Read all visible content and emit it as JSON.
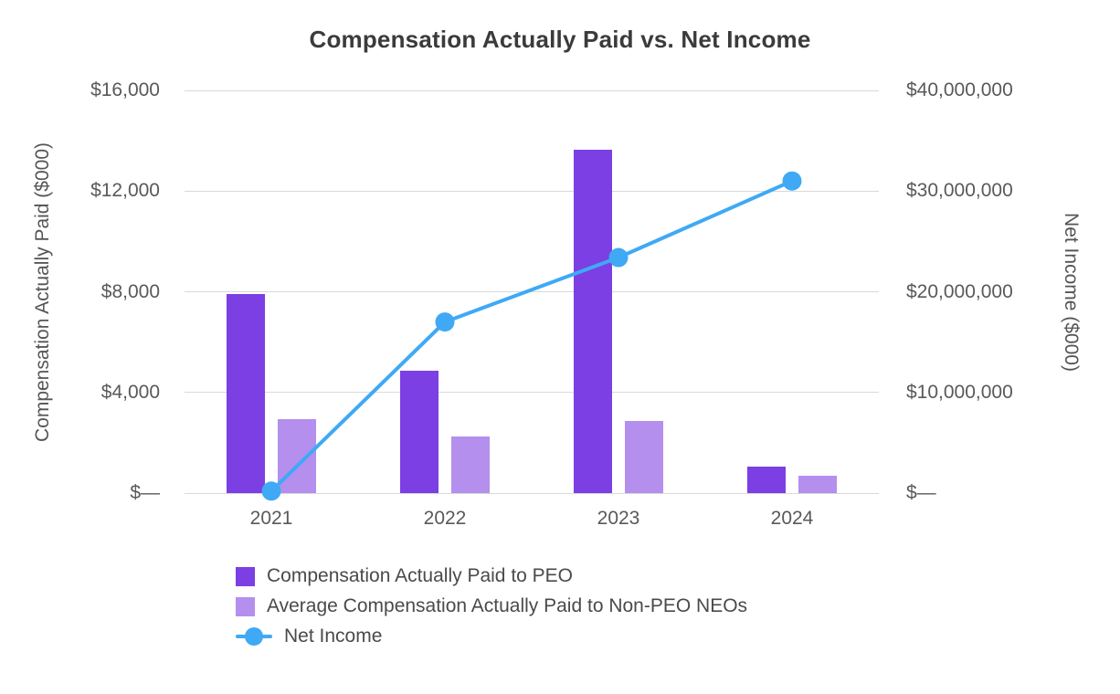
{
  "chart_data": {
    "type": "bar",
    "subtype": "combo-bar-line-dual-axis",
    "title": "Compensation Actually Paid vs. Net Income",
    "categories": [
      "2021",
      "2022",
      "2023",
      "2024"
    ],
    "series": [
      {
        "name": "Compensation Actually Paid to PEO",
        "type": "bar",
        "axis": "left",
        "color": "#7B3FE4",
        "values": [
          7900,
          4850,
          13650,
          1050
        ]
      },
      {
        "name": "Average Compensation Actually Paid to Non-PEO NEOs",
        "type": "bar",
        "axis": "left",
        "color": "#B48FEE",
        "values": [
          2950,
          2250,
          2850,
          680
        ]
      },
      {
        "name": "Net Income",
        "type": "line",
        "axis": "right",
        "color": "#3FA9F5",
        "values": [
          200000,
          17000000,
          23400000,
          31000000
        ]
      }
    ],
    "left_axis": {
      "label": "Compensation Actually Paid ($000)",
      "min": 0,
      "max": 16000,
      "ticks": [
        0,
        4000,
        8000,
        12000,
        16000
      ],
      "tick_labels": [
        "$—",
        "$4,000",
        "$8,000",
        "$12,000",
        "$16,000"
      ]
    },
    "right_axis": {
      "label": "Net Income ($000)",
      "min": 0,
      "max": 40000000,
      "ticks": [
        0,
        10000000,
        20000000,
        30000000,
        40000000
      ],
      "tick_labels": [
        "$—",
        "$10,000,000",
        "$20,000,000",
        "$30,000,000",
        "$40,000,000"
      ]
    },
    "grid": true,
    "legend_position": "bottom-left",
    "colors": {
      "background": "#ffffff",
      "grid_line": "#d9d9d9",
      "axis_text": "#595959",
      "title_text": "#3b3b3b",
      "legend_text": "#4a4a4a"
    }
  }
}
